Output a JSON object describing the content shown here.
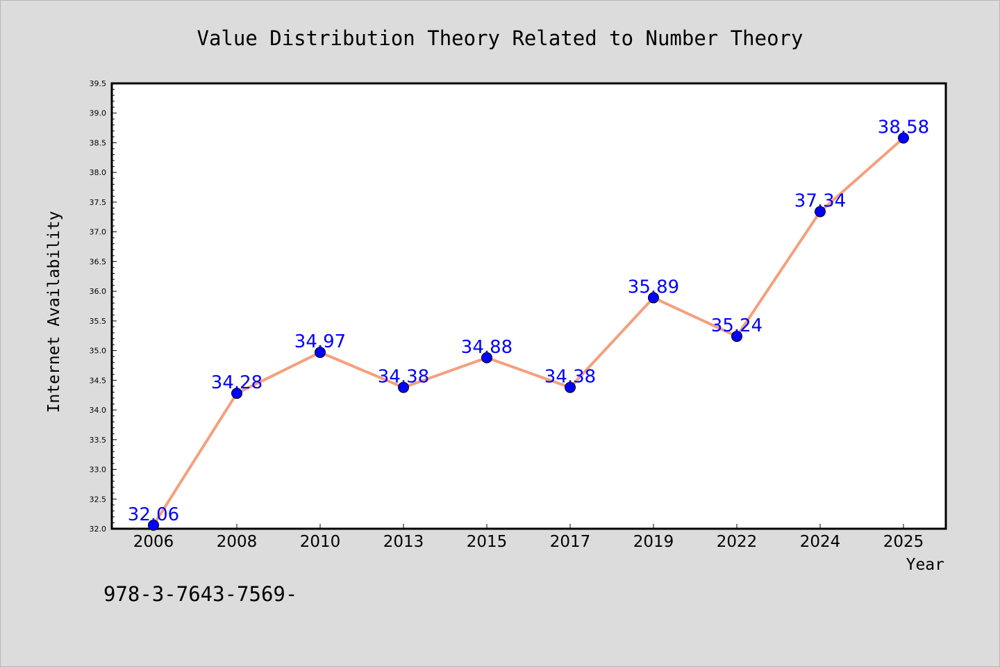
{
  "chart_data": {
    "type": "line",
    "title": "Value Distribution Theory Related to Number Theory",
    "xlabel": "Year",
    "ylabel": "Internet Availability",
    "categories": [
      "2006",
      "2008",
      "2010",
      "2013",
      "2015",
      "2017",
      "2019",
      "2022",
      "2024",
      "2025"
    ],
    "series": [
      {
        "values": [
          32.06,
          34.28,
          34.97,
          34.38,
          34.88,
          34.38,
          35.89,
          35.24,
          37.34,
          38.58
        ],
        "labels": [
          "32.06",
          "34.28",
          "34.97",
          "34.38",
          "34.88",
          "34.38",
          "35.89",
          "35.24",
          "37.34",
          "38.58"
        ],
        "line_color": "#f4a07c",
        "marker_color": "#0000ff"
      }
    ],
    "ylim": [
      32.0,
      39.5
    ],
    "yticks": [
      "32.0",
      "32.5",
      "33.0",
      "33.5",
      "34.0",
      "34.5",
      "35.0",
      "35.5",
      "36.0",
      "36.5",
      "37.0",
      "37.5",
      "38.0",
      "38.5",
      "39.0",
      "39.5"
    ],
    "grid": false,
    "legend": "none",
    "colors": {
      "background": "#dcdcdc",
      "plot_background": "#ffffff",
      "label_color": "#0000ff"
    }
  },
  "footer": {
    "text": "978-3-7643-7569-"
  }
}
